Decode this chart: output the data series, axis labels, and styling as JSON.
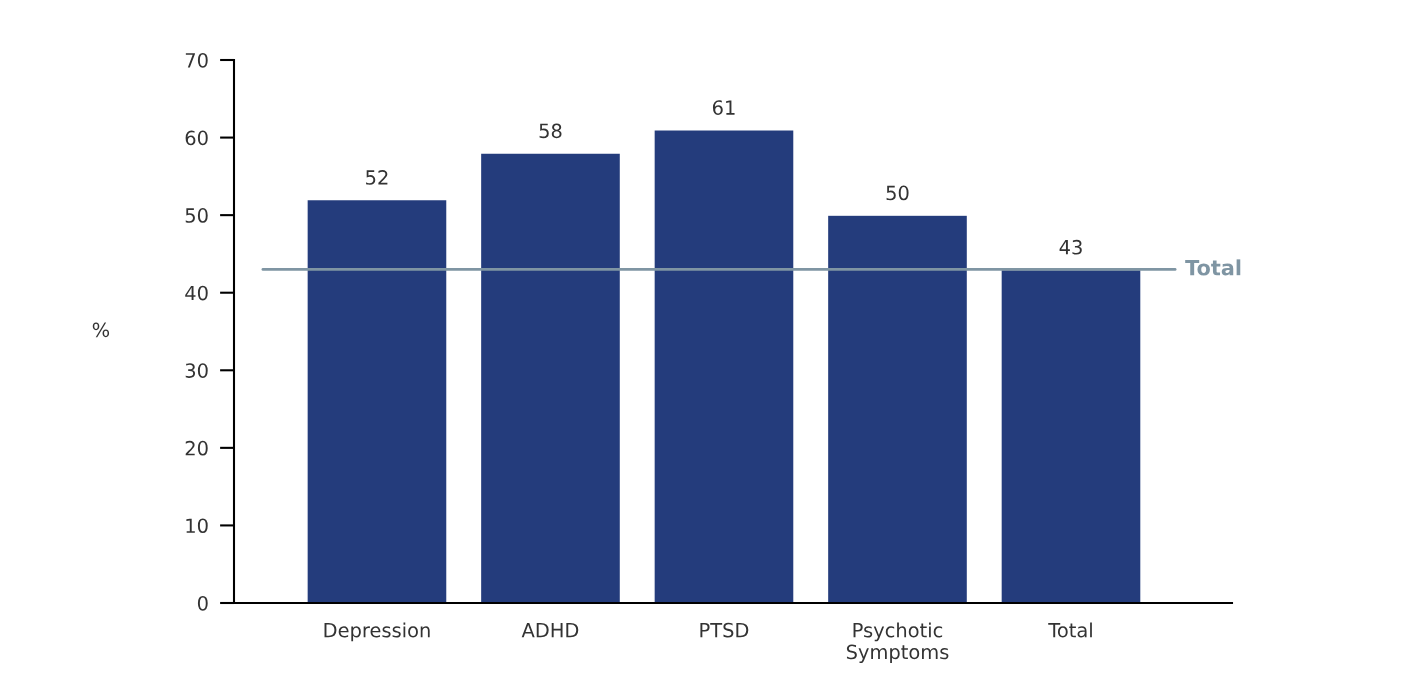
{
  "chart_data": {
    "type": "bar",
    "ylabel": "%",
    "categories": [
      "Depression",
      "ADHD",
      "PTSD",
      "Psychotic\nSymptoms",
      "Total"
    ],
    "values": [
      52,
      58,
      61,
      50,
      43
    ],
    "color": "#243c7c",
    "ylim": [
      0,
      70
    ],
    "yticks": [
      0,
      10,
      20,
      30,
      40,
      50,
      60,
      70
    ],
    "data_labels": true,
    "grid": false,
    "legend": false,
    "ref_lines": [
      {
        "axis": "y",
        "value": 43,
        "label": "Total",
        "color": "#7f95a3"
      }
    ]
  }
}
